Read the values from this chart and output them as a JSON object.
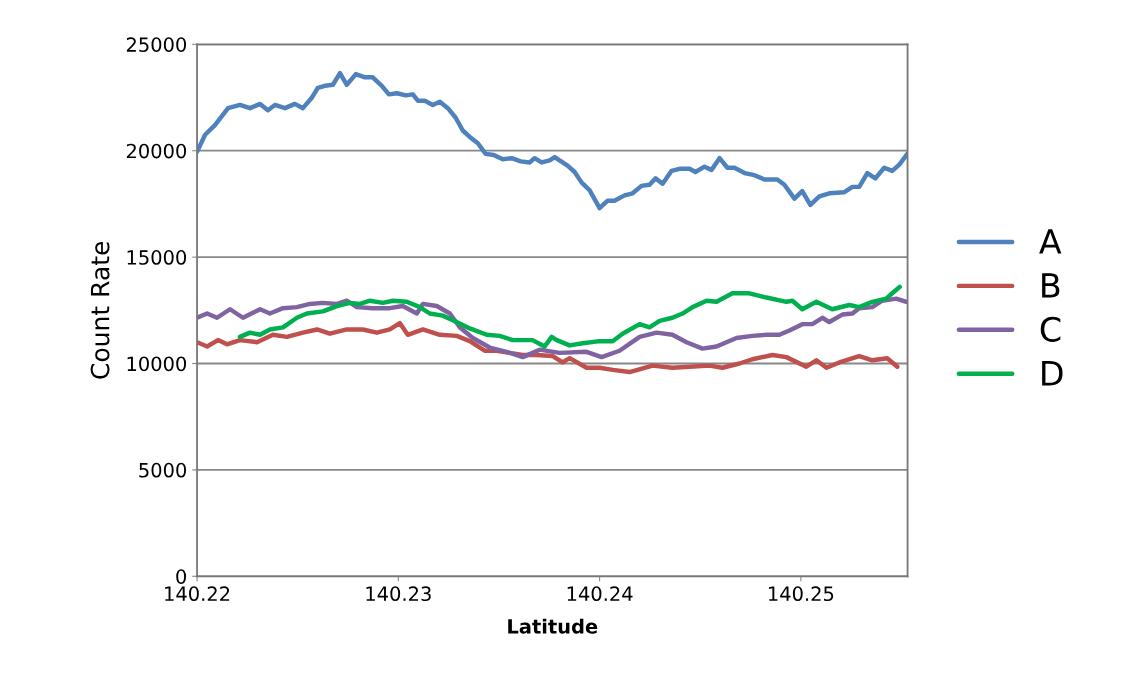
{
  "chart_data": {
    "type": "line",
    "xlabel": "Latitude",
    "ylabel": "Count Rate",
    "xlim": [
      140.22,
      140.2553
    ],
    "xticks": [
      140.22,
      140.23,
      140.24,
      140.25
    ],
    "ylim": [
      0,
      25000
    ],
    "yticks": [
      0,
      5000,
      10000,
      15000,
      20000,
      25000
    ],
    "grid": "y",
    "legend": "right",
    "marker": "none",
    "line_style": "solid",
    "series": [
      {
        "name": "A",
        "color": "#4f81bd",
        "x": [
          140.22,
          140.2204,
          140.22089,
          140.22154,
          140.22213,
          140.22263,
          140.22313,
          140.22352,
          140.22387,
          140.22437,
          140.22486,
          140.22526,
          140.22571,
          140.226,
          140.22635,
          140.22675,
          140.2271,
          140.22744,
          140.22789,
          140.22834,
          140.22873,
          140.22918,
          140.22953,
          140.22993,
          140.23037,
          140.23072,
          140.23097,
          140.23132,
          140.23171,
          140.23206,
          140.23246,
          140.23285,
          140.2332,
          140.23355,
          140.23395,
          140.23434,
          140.23474,
          140.23519,
          140.23563,
          140.23608,
          140.23653,
          140.23677,
          140.23712,
          140.23752,
          140.23777,
          140.23801,
          140.23841,
          140.23876,
          140.23911,
          140.2395,
          140.24,
          140.2404,
          140.24074,
          140.24124,
          140.24164,
          140.24208,
          140.24248,
          140.24278,
          140.24313,
          140.24357,
          140.24397,
          140.24447,
          140.24476,
          140.24521,
          140.24556,
          140.24596,
          140.24635,
          140.2467,
          140.2472,
          140.24769,
          140.24819,
          140.24883,
          140.24918,
          140.24968,
          140.25007,
          140.25047,
          140.25092,
          140.25141,
          140.25216,
          140.25256,
          140.2529,
          140.2533,
          140.2537,
          140.25414,
          140.25454,
          140.25489,
          140.25529
        ],
        "values": [
          19950,
          20750,
          21200,
          22000,
          22150,
          22000,
          22200,
          21900,
          22150,
          22000,
          22200,
          22000,
          22500,
          22950,
          23050,
          23100,
          23650,
          23100,
          23600,
          23450,
          23450,
          23050,
          22650,
          22700,
          22600,
          22650,
          22350,
          22350,
          22150,
          22300,
          22000,
          21550,
          20950,
          20650,
          20350,
          19850,
          19800,
          19600,
          19650,
          19500,
          19450,
          19650,
          19450,
          19550,
          19700,
          19550,
          19300,
          19000,
          18500,
          18150,
          17300,
          17650,
          17650,
          17900,
          18000,
          18350,
          18400,
          18700,
          18450,
          19050,
          19150,
          19150,
          19000,
          19250,
          19100,
          19650,
          19200,
          19200,
          18950,
          18850,
          18650,
          18650,
          18400,
          17750,
          18100,
          17450,
          17850,
          18000,
          18050,
          18300,
          18300,
          18950,
          18700,
          19200,
          19050,
          19350,
          19850
        ]
      },
      {
        "name": "B",
        "color": "#c0504d",
        "x": [
          140.22,
          140.2205,
          140.22104,
          140.22149,
          140.22213,
          140.22298,
          140.22377,
          140.22447,
          140.22526,
          140.22596,
          140.2266,
          140.22744,
          140.22824,
          140.22893,
          140.22958,
          140.23007,
          140.23047,
          140.23122,
          140.23206,
          140.2329,
          140.23355,
          140.23429,
          140.23489,
          140.23553,
          140.23618,
          140.23687,
          140.23767,
          140.23816,
          140.23851,
          140.23935,
          140.24,
          140.24065,
          140.24149,
          140.24263,
          140.24362,
          140.24447,
          140.24546,
          140.2461,
          140.24695,
          140.24759,
          140.24859,
          140.24928,
          140.25027,
          140.25077,
          140.25127,
          140.25191,
          140.2529,
          140.25355,
          140.25429,
          140.25479
        ],
        "values": [
          11000,
          10800,
          11100,
          10900,
          11100,
          11000,
          11350,
          11250,
          11450,
          11600,
          11400,
          11600,
          11600,
          11450,
          11600,
          11900,
          11350,
          11600,
          11350,
          11300,
          11050,
          10600,
          10600,
          10500,
          10400,
          10400,
          10350,
          10050,
          10250,
          9800,
          9800,
          9700,
          9600,
          9900,
          9800,
          9850,
          9900,
          9800,
          10000,
          10200,
          10400,
          10300,
          9850,
          10150,
          9800,
          10050,
          10350,
          10150,
          10250,
          9850
        ]
      },
      {
        "name": "C",
        "color": "#8064a2",
        "x": [
          140.22,
          140.2205,
          140.22099,
          140.22164,
          140.22228,
          140.22313,
          140.22362,
          140.22427,
          140.22496,
          140.22561,
          140.22625,
          140.22695,
          140.22744,
          140.22794,
          140.22873,
          140.22958,
          140.23022,
          140.23092,
          140.23122,
          140.23191,
          140.23256,
          140.23305,
          140.2337,
          140.23454,
          140.23538,
          140.23618,
          140.23702,
          140.23801,
          140.23935,
          140.2401,
          140.24099,
          140.24199,
          140.24283,
          140.24362,
          140.24432,
          140.24511,
          140.24581,
          140.2468,
          140.24759,
          140.24829,
          140.24893,
          140.24943,
          140.25007,
          140.25057,
          140.25107,
          140.25141,
          140.25206,
          140.25256,
          140.2529,
          140.25355,
          140.25404,
          140.25474,
          140.25524
        ],
        "values": [
          12150,
          12350,
          12150,
          12550,
          12150,
          12550,
          12350,
          12600,
          12650,
          12800,
          12850,
          12800,
          12950,
          12650,
          12600,
          12600,
          12700,
          12350,
          12800,
          12700,
          12350,
          11700,
          11200,
          10750,
          10550,
          10300,
          10650,
          10500,
          10550,
          10300,
          10600,
          11250,
          11450,
          11350,
          11000,
          10700,
          10800,
          11200,
          11300,
          11350,
          11350,
          11550,
          11850,
          11850,
          12150,
          11950,
          12300,
          12350,
          12600,
          12650,
          12950,
          13050,
          12900
        ]
      },
      {
        "name": "D",
        "color": "#00b050",
        "x": [
          140.22213,
          140.22263,
          140.22313,
          140.22362,
          140.22427,
          140.22496,
          140.22546,
          140.22625,
          140.22695,
          140.22759,
          140.22809,
          140.22859,
          140.22923,
          140.22973,
          140.23042,
          140.23107,
          140.23156,
          140.23221,
          140.2329,
          140.23355,
          140.23439,
          140.23504,
          140.23568,
          140.23667,
          140.23727,
          140.23762,
          140.23787,
          140.23851,
          140.23916,
          140.24,
          140.24065,
          140.24114,
          140.24199,
          140.24248,
          140.24298,
          140.24362,
          140.24412,
          140.24462,
          140.24531,
          140.24581,
          140.2466,
          140.24744,
          140.24829,
          140.24928,
          140.24958,
          140.25007,
          140.25077,
          140.25156,
          140.25241,
          140.2529,
          140.25355,
          140.25424,
          140.25454,
          140.25491
        ],
        "values": [
          11250,
          11450,
          11350,
          11600,
          11700,
          12150,
          12350,
          12450,
          12700,
          12850,
          12800,
          12950,
          12850,
          12950,
          12900,
          12650,
          12350,
          12250,
          11950,
          11650,
          11350,
          11300,
          11100,
          11100,
          10800,
          11250,
          11100,
          10850,
          10950,
          11050,
          11050,
          11400,
          11850,
          11700,
          12000,
          12150,
          12350,
          12650,
          12950,
          12900,
          13300,
          13300,
          13100,
          12900,
          12950,
          12550,
          12900,
          12550,
          12750,
          12650,
          12900,
          13050,
          13300,
          13600
        ]
      }
    ]
  }
}
